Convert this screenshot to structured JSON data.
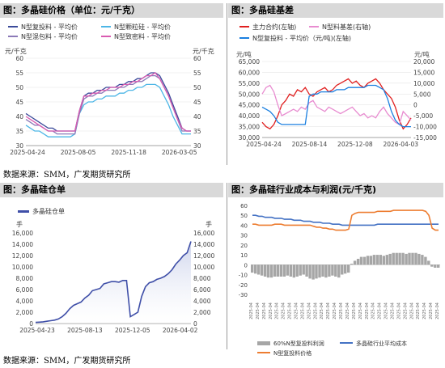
{
  "charts": {
    "price": {
      "title": "图：多晶硅价格（单位：元/千克）",
      "unit_left": "元/千克",
      "unit_right": "元/千克",
      "legend": [
        "N型复投料 - 平均价",
        "N型颗粒硅 - 平均价",
        "N型混包料 - 平均价",
        "N型致密料 - 平均价"
      ]
    },
    "basis": {
      "title": "图：多晶硅基差",
      "unit_left": "元/吨",
      "unit_right": "元/吨",
      "legend": [
        "主力合约(左轴)",
        "N型料基差(右轴)",
        "N型复投料 - 平均价（元/吨)(左轴)"
      ]
    },
    "warehouse": {
      "title": "图：多晶硅仓单",
      "unit_left": "手",
      "unit_right": "手",
      "legend": [
        "多晶硅仓单"
      ]
    },
    "cost": {
      "title": "图：多晶硅行业成本与利润(元/千克)",
      "legend": [
        "60%N型复投料利润",
        "多晶硅行业平均成本",
        "N型复投料价格"
      ]
    }
  },
  "source_top": "数据来源：SMM，广发期货研究所",
  "source_bottom": "数据来源：SMM，广发期货研究所",
  "chart_data": [
    {
      "type": "line",
      "title": "图：多晶硅价格（单位：元/千克）",
      "x_ticks": [
        "2025-04-24",
        "2025-08-05",
        "2025-11-18",
        "2026-03-05"
      ],
      "ylim": [
        30,
        60
      ],
      "y_ticks": [
        30,
        35,
        40,
        45,
        50,
        55,
        60
      ],
      "series": [
        {
          "name": "N型复投料 - 平均价",
          "color": "#3b4a9a",
          "values": [
            41,
            40,
            39,
            38,
            37,
            36,
            36,
            35,
            35,
            35,
            35,
            35,
            42,
            47,
            48,
            48,
            49,
            49,
            50,
            50,
            50,
            51,
            51,
            52,
            52,
            53,
            53,
            54,
            55,
            55,
            54,
            51,
            48,
            44,
            40,
            36,
            35,
            35
          ]
        },
        {
          "name": "N型颗粒硅 - 平均价",
          "color": "#4db6e6",
          "values": [
            37,
            36,
            35,
            35,
            34,
            33,
            33,
            33,
            33,
            33,
            33,
            34,
            41,
            44,
            45,
            45,
            46,
            46,
            47,
            47,
            47,
            48,
            48,
            49,
            49,
            50,
            50,
            51,
            51,
            51,
            50,
            47,
            44,
            40,
            37,
            34,
            34,
            34
          ]
        },
        {
          "name": "N型混包料 - 平均价",
          "color": "#8c7ab8",
          "values": [
            39,
            38,
            37,
            37,
            36,
            35,
            35,
            34,
            34,
            34,
            34,
            34,
            41,
            46,
            47,
            47,
            48,
            48,
            49,
            49,
            49,
            50,
            50,
            51,
            51,
            52,
            52,
            53,
            54,
            54,
            53,
            50,
            47,
            43,
            39,
            35,
            35,
            35
          ]
        },
        {
          "name": "N型致密料 - 平均价",
          "color": "#d95bb1",
          "values": [
            40,
            39,
            38,
            37,
            36,
            35,
            35,
            35,
            35,
            35,
            35,
            35,
            42,
            47,
            47,
            48,
            48,
            49,
            49,
            50,
            50,
            50,
            51,
            51,
            52,
            52,
            53,
            54,
            54,
            55,
            53,
            50,
            47,
            43,
            39,
            36,
            35,
            35
          ]
        }
      ]
    },
    {
      "type": "line",
      "title": "图：多晶硅基差",
      "x_ticks": [
        "2025-04-24",
        "2025-08-14",
        "2025-12-08",
        "2026-04-03"
      ],
      "ylim": [
        30000,
        65000
      ],
      "y_ticks": [
        30000,
        35000,
        40000,
        45000,
        50000,
        55000,
        60000,
        65000
      ],
      "y2lim": [
        -15000,
        20000
      ],
      "y2_ticks": [
        -15000,
        -10000,
        -5000,
        0,
        5000,
        10000,
        15000,
        20000
      ],
      "series": [
        {
          "name": "主力合约(左轴)",
          "axis": "left",
          "color": "#e02020",
          "values": [
            37000,
            35000,
            34000,
            36000,
            40000,
            45000,
            47000,
            50000,
            49000,
            52000,
            51000,
            53000,
            50000,
            49000,
            51000,
            52000,
            53000,
            51000,
            52000,
            54000,
            55000,
            56000,
            57000,
            55000,
            56000,
            54000,
            53000,
            55000,
            56000,
            57000,
            55000,
            52000,
            50000,
            48000,
            44000,
            38000,
            34000,
            36000,
            39000
          ]
        },
        {
          "name": "N型料基差(右轴)",
          "axis": "right",
          "color": "#e88cd0",
          "values": [
            5000,
            8000,
            9000,
            6000,
            0,
            -5000,
            -4000,
            -3000,
            -2000,
            -3000,
            -1000,
            -2000,
            1000,
            2000,
            -1000,
            -2000,
            -3000,
            -1000,
            -2000,
            -3000,
            -4000,
            -3000,
            -2000,
            -1000,
            -3000,
            -5000,
            -4000,
            -6000,
            -5000,
            -6000,
            -3000,
            -1000,
            -4000,
            -6000,
            -8000,
            -9000,
            -3000,
            -5000,
            -7000
          ]
        },
        {
          "name": "N型复投料 - 平均价（元/吨)(左轴)",
          "axis": "left",
          "color": "#1a7fe0",
          "values": [
            44000,
            43000,
            42000,
            40000,
            37000,
            36000,
            36000,
            36000,
            36000,
            36000,
            36000,
            36000,
            49000,
            50000,
            50000,
            51000,
            51000,
            51000,
            51000,
            52000,
            52000,
            52000,
            53000,
            53000,
            53000,
            53000,
            53000,
            54000,
            54000,
            54000,
            53000,
            52000,
            48000,
            42000,
            38000,
            36000,
            35000,
            35000,
            35000
          ]
        }
      ]
    },
    {
      "type": "area",
      "title": "图：多晶硅仓单",
      "x_ticks": [
        "2025-04-23",
        "2025-08-13",
        "2025-12-05",
        "2026-04-02"
      ],
      "ylim": [
        0,
        16000
      ],
      "y_ticks": [
        0,
        2000,
        4000,
        6000,
        8000,
        10000,
        12000,
        14000,
        16000
      ],
      "series": [
        {
          "name": "多晶硅仓单",
          "color": "#3f4fa8",
          "values": [
            200,
            250,
            300,
            400,
            500,
            600,
            800,
            1200,
            1800,
            2600,
            3200,
            3500,
            3800,
            4500,
            5000,
            5800,
            6000,
            6200,
            7000,
            7200,
            7400,
            7400,
            7300,
            7600,
            7600,
            1200,
            1600,
            2000,
            4800,
            6500,
            7200,
            7400,
            7800,
            8000,
            8300,
            8800,
            9500,
            10500,
            11200,
            12000,
            12500,
            14500
          ]
        }
      ]
    },
    {
      "type": "bar",
      "title": "图：多晶硅行业成本与利润(元/千克)",
      "ylim": [
        -30,
        60
      ],
      "y_ticks": [
        -30,
        -20,
        -10,
        0,
        10,
        20,
        30,
        40,
        50,
        60
      ],
      "series": [
        {
          "name": "60%N型复投料利润",
          "type": "bar",
          "color": "#a6a6a6",
          "values": [
            -8,
            -9,
            -10,
            -11,
            -12,
            -13,
            -13,
            -12,
            -12,
            -12,
            -12,
            -11,
            -12,
            -13,
            -12,
            -11,
            -10,
            -12,
            -14,
            -15,
            -14,
            -13,
            -12,
            -13,
            -12,
            -11,
            -12,
            -13,
            -10,
            -9,
            -8,
            1,
            4,
            6,
            8,
            8,
            9,
            9,
            10,
            10,
            10,
            9,
            10,
            11,
            12,
            12,
            12,
            12,
            11,
            12,
            12,
            12,
            11,
            10,
            8,
            4,
            -2,
            -3,
            -3
          ]
        },
        {
          "name": "多晶硅行业平均成本",
          "type": "line",
          "color": "#4472c4",
          "values": [
            50,
            50,
            49,
            49,
            48,
            48,
            48,
            47,
            47,
            47,
            46,
            46,
            46,
            45,
            45,
            45,
            44,
            44,
            44,
            43,
            43,
            43,
            42,
            42,
            42,
            41,
            41,
            41,
            40,
            40,
            40,
            40,
            40,
            40,
            40,
            40,
            40,
            40,
            40,
            41,
            41,
            41,
            41,
            41,
            41,
            41,
            41,
            41,
            41,
            41,
            41,
            41,
            41,
            41,
            41,
            41,
            41,
            41,
            41
          ]
        },
        {
          "name": "N型复投料价格",
          "type": "line",
          "color": "#ed7d31",
          "values": [
            41,
            41,
            40,
            40,
            40,
            40,
            40,
            41,
            41,
            41,
            40,
            40,
            40,
            40,
            40,
            40,
            40,
            40,
            40,
            39,
            38,
            38,
            37,
            37,
            36,
            36,
            35,
            35,
            35,
            35,
            36,
            50,
            52,
            53,
            53,
            53,
            53,
            53,
            53,
            54,
            54,
            54,
            54,
            54,
            55,
            55,
            55,
            55,
            55,
            55,
            55,
            55,
            55,
            55,
            54,
            50,
            37,
            35,
            35
          ]
        }
      ]
    }
  ]
}
